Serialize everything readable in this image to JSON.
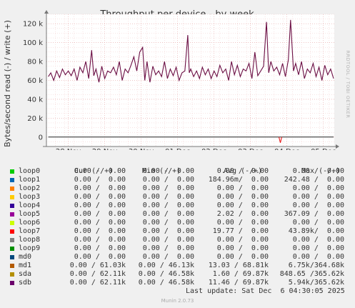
{
  "chart_data": {
    "type": "line",
    "title": "Throughput per device - by week",
    "ylabel": "Bytes/second read (-) / write (+)",
    "side_text": "RRDTOOL / TOBI OETIKER",
    "ylim": [
      -10000,
      130000
    ],
    "yticks": [
      {
        "value": 0,
        "label": "0"
      },
      {
        "value": 20000,
        "label": "20 k"
      },
      {
        "value": 40000,
        "label": "40 k"
      },
      {
        "value": 60000,
        "label": "60 k"
      },
      {
        "value": 80000,
        "label": "80 k"
      },
      {
        "value": 100000,
        "label": "100 k"
      },
      {
        "value": 120000,
        "label": "120 k"
      }
    ],
    "xlim": [
      0,
      7.9
    ],
    "xticks": [
      {
        "value": 0.6,
        "label": "28 Nov"
      },
      {
        "value": 1.6,
        "label": "29 Nov"
      },
      {
        "value": 2.6,
        "label": "30 Nov"
      },
      {
        "value": 3.6,
        "label": "01 Dec"
      },
      {
        "value": 4.6,
        "label": "02 Dec"
      },
      {
        "value": 5.6,
        "label": "03 Dec"
      },
      {
        "value": 6.6,
        "label": "04 Dec"
      },
      {
        "value": 7.6,
        "label": "05 Dec"
      }
    ],
    "grid": true,
    "series": [
      {
        "name": "sdb",
        "color": "#6b0e44",
        "x": [
          0.05,
          0.12,
          0.2,
          0.28,
          0.36,
          0.44,
          0.52,
          0.6,
          0.68,
          0.76,
          0.84,
          0.92,
          1.0,
          1.08,
          1.16,
          1.24,
          1.3,
          1.36,
          1.44,
          1.52,
          1.6,
          1.68,
          1.76,
          1.84,
          1.92,
          2.0,
          2.08,
          2.16,
          2.24,
          2.32,
          2.4,
          2.48,
          2.56,
          2.64,
          2.7,
          2.76,
          2.84,
          2.92,
          3.0,
          3.08,
          3.16,
          3.24,
          3.32,
          3.4,
          3.48,
          3.56,
          3.64,
          3.72,
          3.8,
          3.88,
          3.92,
          3.96,
          4.04,
          4.12,
          4.2,
          4.28,
          4.36,
          4.44,
          4.52,
          4.6,
          4.68,
          4.76,
          4.84,
          4.92,
          5.0,
          5.08,
          5.16,
          5.24,
          5.32,
          5.4,
          5.48,
          5.56,
          5.64,
          5.72,
          5.8,
          5.88,
          5.96,
          6.04,
          6.1,
          6.16,
          6.24,
          6.32,
          6.4,
          6.48,
          6.56,
          6.64,
          6.7,
          6.78,
          6.84,
          6.92,
          7.0,
          7.08,
          7.16,
          7.24,
          7.32,
          7.4,
          7.48,
          7.56,
          7.64,
          7.72,
          7.8,
          7.88
        ],
        "values": [
          64,
          68,
          60,
          70,
          63,
          72,
          66,
          70,
          65,
          72,
          60,
          74,
          68,
          80,
          62,
          92,
          65,
          72,
          58,
          75,
          62,
          70,
          68,
          74,
          66,
          80,
          60,
          72,
          68,
          76,
          85,
          70,
          90,
          95,
          60,
          80,
          58,
          75,
          66,
          70,
          64,
          80,
          62,
          72,
          65,
          74,
          60,
          68,
          70,
          108,
          68,
          72,
          64,
          70,
          62,
          74,
          66,
          72,
          62,
          70,
          64,
          76,
          68,
          72,
          60,
          80,
          66,
          76,
          64,
          72,
          70,
          78,
          62,
          90,
          65,
          70,
          75,
          122,
          68,
          80,
          70,
          74,
          66,
          78,
          64,
          82,
          124,
          70,
          78,
          66,
          80,
          62,
          72,
          68,
          78,
          64,
          74,
          60,
          76,
          66,
          72,
          62
        ]
      },
      {
        "name": "loop7",
        "color": "#e81a1a",
        "x": [
          6.38,
          6.42,
          6.46
        ],
        "values": [
          0,
          -6000,
          0
        ]
      }
    ]
  },
  "legend": {
    "headers": [
      "Cur (-/+)",
      "Min (-/+)",
      "Avg (-/+)",
      "Max (-/+)"
    ],
    "rows": [
      {
        "name": "loop0",
        "color": "#00cc00",
        "cur": "0.00 /  0.00",
        "min": "0.00 /  0.00",
        "avg": "0.00 /  0.00",
        "max": "0.00 /  0.00"
      },
      {
        "name": "loop1",
        "color": "#0066b3",
        "cur": "0.00 /  0.00",
        "min": "0.00 /  0.00",
        "avg": "184.96m/  0.00",
        "max": "242.48 /  0.00"
      },
      {
        "name": "loop2",
        "color": "#ff8000",
        "cur": "0.00 /  0.00",
        "min": "0.00 /  0.00",
        "avg": "0.00 /  0.00",
        "max": "0.00 /  0.00"
      },
      {
        "name": "loop3",
        "color": "#ffcc00",
        "cur": "0.00 /  0.00",
        "min": "0.00 /  0.00",
        "avg": "0.00 /  0.00",
        "max": "0.00 /  0.00"
      },
      {
        "name": "loop4",
        "color": "#330099",
        "cur": "0.00 /  0.00",
        "min": "0.00 /  0.00",
        "avg": "0.00 /  0.00",
        "max": "0.00 /  0.00"
      },
      {
        "name": "loop5",
        "color": "#990099",
        "cur": "0.00 /  0.00",
        "min": "0.00 /  0.00",
        "avg": "2.02 /  0.00",
        "max": "367.09 /  0.00"
      },
      {
        "name": "loop6",
        "color": "#ccff00",
        "cur": "0.00 /  0.00",
        "min": "0.00 /  0.00",
        "avg": "0.00 /  0.00",
        "max": "0.00 /  0.00"
      },
      {
        "name": "loop7",
        "color": "#ff0000",
        "cur": "0.00 /  0.00",
        "min": "0.00 /  0.00",
        "avg": "19.77 /  0.00",
        "max": "43.89k/  0.00"
      },
      {
        "name": "loop8",
        "color": "#808080",
        "cur": "0.00 /  0.00",
        "min": "0.00 /  0.00",
        "avg": "0.00 /  0.00",
        "max": "0.00 /  0.00"
      },
      {
        "name": "loop9",
        "color": "#008f00",
        "cur": "0.00 /  0.00",
        "min": "0.00 /  0.00",
        "avg": "0.00 /  0.00",
        "max": "0.00 /  0.00"
      },
      {
        "name": "md0",
        "color": "#00487d",
        "cur": "0.00 /  0.00",
        "min": "0.00 /  0.00",
        "avg": "0.00 /  0.00",
        "max": "0.00 /  0.00"
      },
      {
        "name": "md1",
        "color": "#b35a00",
        "cur": "0.00 / 61.03k",
        "min": "0.00 / 46.13k",
        "avg": "13.03 / 68.81k",
        "max": "6.75k/364.68k"
      },
      {
        "name": "sda",
        "color": "#b38f00",
        "cur": "0.00 / 62.11k",
        "min": "0.00 / 46.58k",
        "avg": "1.60 / 69.87k",
        "max": "848.65 /365.62k"
      },
      {
        "name": "sdb",
        "color": "#6b006b",
        "cur": "0.00 / 62.11k",
        "min": "0.00 / 46.58k",
        "avg": "11.46 / 69.87k",
        "max": "5.94k/365.62k"
      }
    ],
    "last_update": "Last update: Sat Dec  6 04:30:05 2025"
  },
  "footer": "Munin 2.0.73"
}
